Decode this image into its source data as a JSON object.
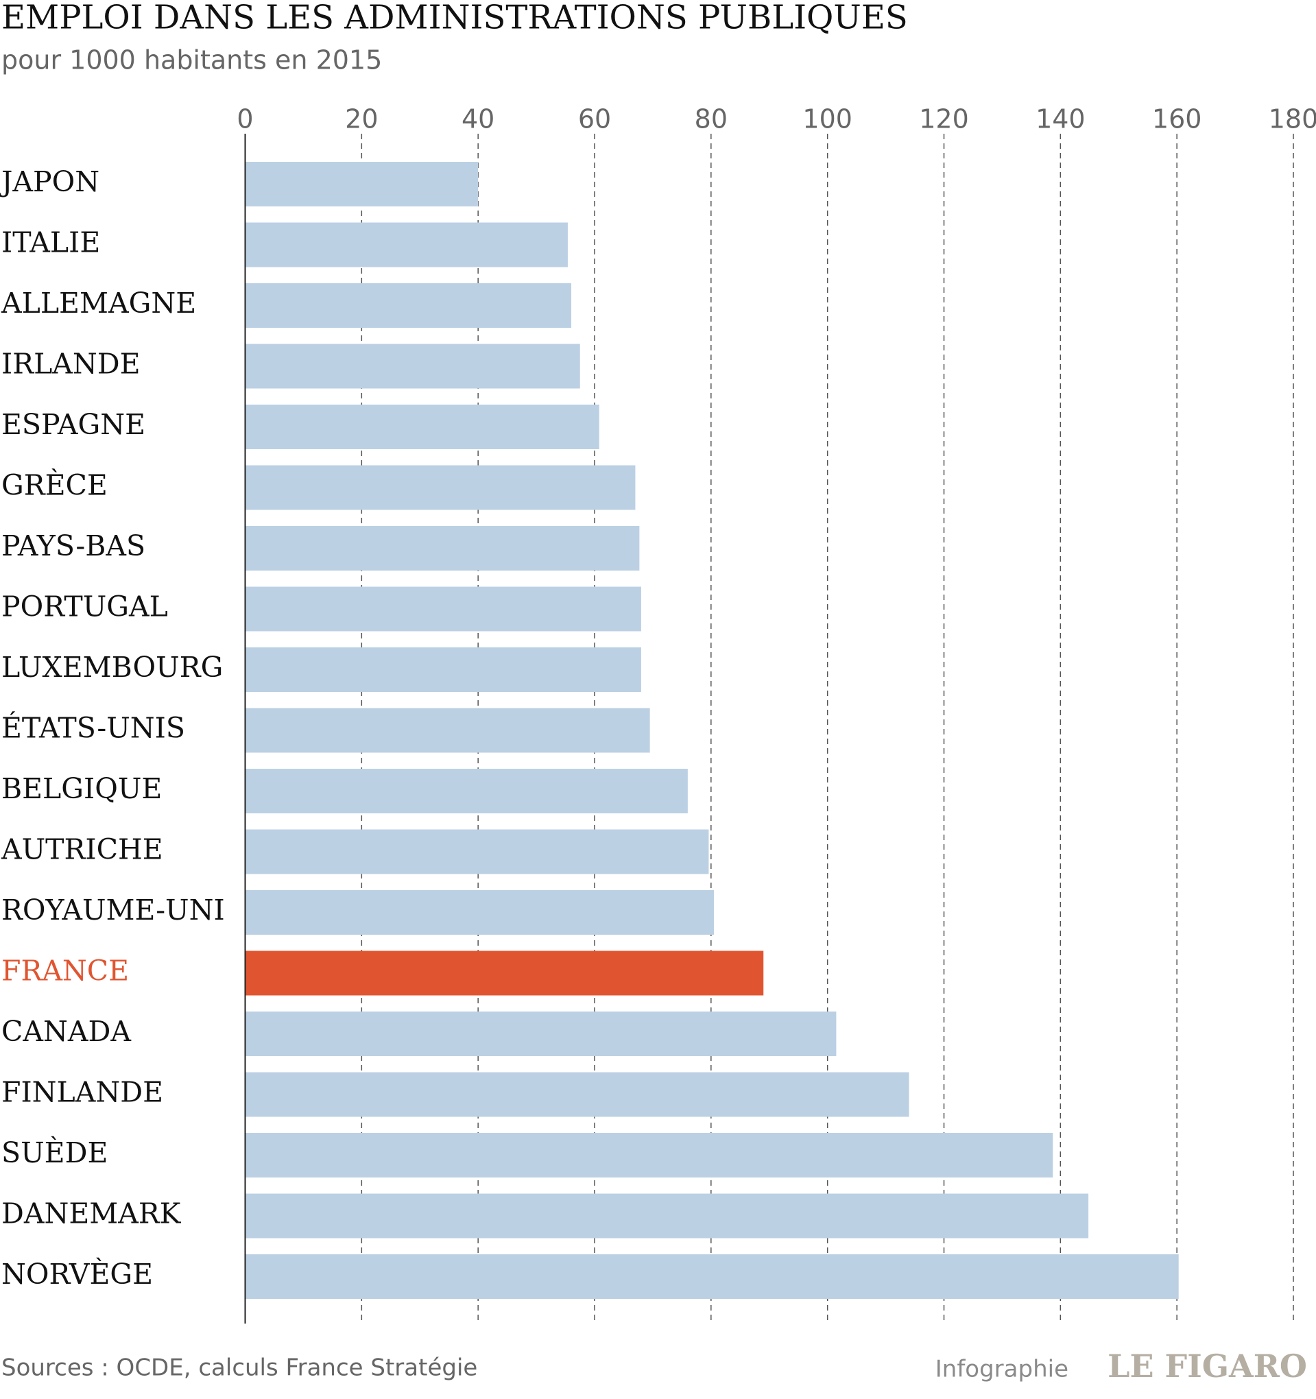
{
  "chart_data": {
    "type": "bar",
    "orientation": "horizontal",
    "title": "EMPLOI DANS LES ADMINISTRATIONS PUBLIQUES",
    "subtitle": "pour 1000 habitants en 2015",
    "categories": [
      "JAPON",
      "ITALIE",
      "ALLEMAGNE",
      "IRLANDE",
      "ESPAGNE",
      "GRÈCE",
      "PAYS-BAS",
      "PORTUGAL",
      "LUXEMBOURG",
      "ÉTATS-UNIS",
      "BELGIQUE",
      "AUTRICHE",
      "ROYAUME-UNI",
      "FRANCE",
      "CANADA",
      "FINLANDE",
      "SUÈDE",
      "DANEMARK",
      "NORVÈGE"
    ],
    "values": [
      40,
      55.4,
      56,
      57.5,
      60.8,
      67,
      67.7,
      68,
      68,
      69.5,
      76,
      79.6,
      80.5,
      89,
      101.5,
      114,
      138.7,
      144.8,
      160.3
    ],
    "color": "#bcd0e4",
    "colors": [
      "#bcd0e4",
      "#bcd0e4",
      "#bcd0e4",
      "#bcd0e4",
      "#bcd0e4",
      "#bcd0e4",
      "#bcd0e4",
      "#bcd0e4",
      "#bcd0e4",
      "#bcd0e4",
      "#bcd0e4",
      "#bcd0e4",
      "#bcd0e4",
      "#e05530",
      "#bcd0e4",
      "#bcd0e4",
      "#bcd0e4",
      "#bcd0e4",
      "#bcd0e4"
    ],
    "xlim": [
      0,
      180
    ],
    "xticks": [
      0,
      20,
      40,
      60,
      80,
      100,
      120,
      140,
      160,
      180
    ],
    "grid": true,
    "source": "Sources : OCDE, calculs France Stratégie",
    "credit": {
      "label": "Infographie",
      "brand": "LE FIGARO"
    }
  }
}
